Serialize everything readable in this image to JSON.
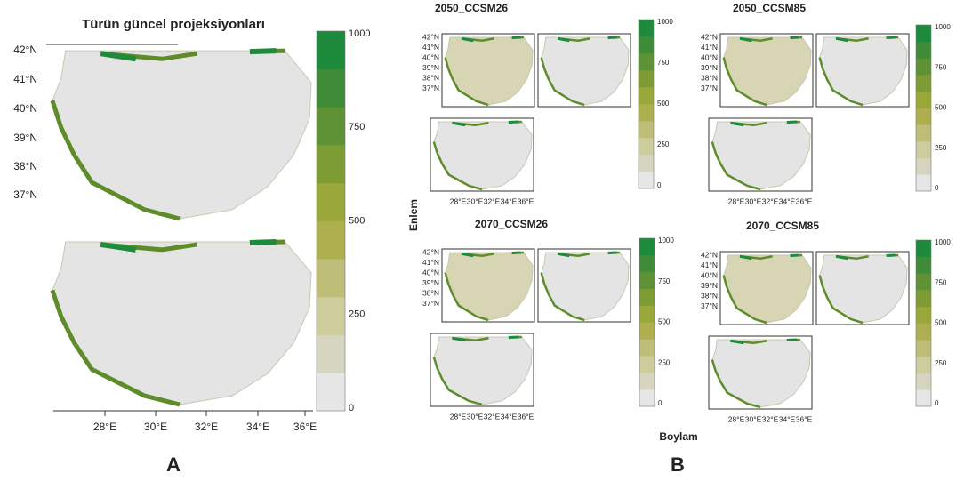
{
  "panel_a": {
    "title": "Türün güncel projeksiyonları",
    "lat_labels": [
      "42°N",
      "41°N",
      "40°N",
      "39°N",
      "38°N",
      "37°N"
    ],
    "lon_labels": [
      "28°E",
      "30°E",
      "32°E",
      "34°E",
      "36°E"
    ],
    "colorbar_labels": [
      "1000",
      "750",
      "500",
      "250",
      "0"
    ],
    "label": "A"
  },
  "panel_b": {
    "y_label": "Enlem",
    "x_label": "Boylam",
    "label": "B",
    "lat_labels": [
      "42°N",
      "41°N",
      "40°N",
      "39°N",
      "38°N",
      "37°N"
    ],
    "lon_labels": [
      "28°E",
      "30°E",
      "32°E",
      "34°E",
      "36°E"
    ],
    "colorbar_labels": [
      "1000",
      "750",
      "500",
      "250",
      "0"
    ],
    "maps": [
      {
        "title": "2050_CCSM26"
      },
      {
        "title": "2050_CCSM85"
      },
      {
        "title": "2070_CCSM26"
      },
      {
        "title": "2070_CCSM85"
      }
    ]
  }
}
